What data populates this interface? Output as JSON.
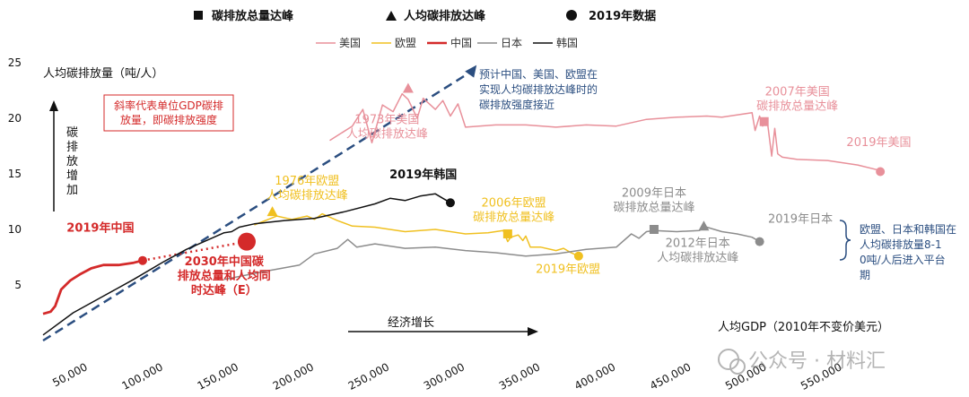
{
  "chart_data": {
    "type": "line",
    "ylabel": "人均碳排放量（吨/人）",
    "xlabel": "人均GDP（2010年不变价美元）",
    "ylim": [
      0,
      25
    ],
    "xlim": [
      20000,
      610000
    ],
    "yticks": [
      5,
      10,
      15,
      20,
      25
    ],
    "xticks": [
      50000,
      100000,
      150000,
      200000,
      250000,
      300000,
      350000,
      400000,
      450000,
      500000,
      550000
    ],
    "xtick_labels": [
      "50,000",
      "100,000",
      "150,000",
      "200,000",
      "250,000",
      "300,000",
      "350,000",
      "400,000",
      "450,000",
      "500,000",
      "550,000"
    ],
    "marker_legend": [
      {
        "symbol": "square",
        "label": "碳排放总量达峰"
      },
      {
        "symbol": "triangle",
        "label": "人均碳排放达峰"
      },
      {
        "symbol": "circle",
        "label": "2019年数据"
      }
    ],
    "series": [
      {
        "name": "美国",
        "color": "#e8909a",
        "x": [
          210000,
          225000,
          232000,
          238000,
          245000,
          252000,
          258000,
          262000,
          268000,
          272000,
          280000,
          285000,
          290000,
          295000,
          300000,
          320000,
          340000,
          360000,
          380000,
          400000,
          420000,
          440000,
          460000,
          470000,
          480000,
          490000,
          492000,
          495000,
          497000,
          500000,
          503000,
          505000,
          507000,
          510000,
          520000,
          540000,
          560000,
          575000
        ],
        "y": [
          18,
          19.3,
          20.8,
          17.8,
          21.2,
          20.6,
          22.2,
          21.7,
          20,
          21.8,
          20.8,
          21.6,
          20.2,
          21.3,
          19.2,
          19.4,
          19.4,
          19.2,
          19.4,
          19.3,
          19.9,
          20.1,
          20.2,
          20.1,
          20.3,
          20.5,
          18.9,
          20.2,
          19.3,
          19.8,
          16.6,
          19.1,
          16.8,
          16.5,
          16.3,
          16.2,
          15.8,
          15.3
        ]
      },
      {
        "name": "欧盟",
        "color": "#f0c020",
        "x": [
          160000,
          175000,
          185000,
          195000,
          200000,
          205000,
          215000,
          225000,
          240000,
          260000,
          280000,
          300000,
          315000,
          325000,
          328000,
          330000,
          335000,
          338000,
          340000,
          343000,
          350000,
          360000,
          365000,
          370000,
          375000
        ],
        "y": [
          10.4,
          11.2,
          10.9,
          11.2,
          10.9,
          11.4,
          10.8,
          10.3,
          10.2,
          9.8,
          10,
          9.6,
          9.7,
          9.9,
          8.9,
          9.3,
          9.5,
          9,
          9.4,
          8.4,
          8.4,
          8.1,
          8.3,
          7.9,
          7.6
        ]
      },
      {
        "name": "中国",
        "color": "#d42a2a",
        "x": [
          20000,
          25000,
          28000,
          32000,
          38000,
          45000,
          52000,
          60000,
          70000,
          80000,
          86000
        ],
        "y": [
          2.4,
          2.6,
          3.1,
          4.6,
          5.4,
          6,
          6.5,
          6.8,
          6.8,
          7,
          7.2
        ]
      },
      {
        "name": "日本",
        "color": "#8c8c8c",
        "x": [
          140000,
          170000,
          190000,
          200000,
          215000,
          222000,
          228000,
          240000,
          260000,
          280000,
          300000,
          320000,
          340000,
          360000,
          380000,
          400000,
          410000,
          415000,
          420000,
          425000,
          440000,
          455000,
          460000,
          470000,
          480000,
          490000,
          495000
        ],
        "y": [
          5.5,
          6.3,
          6.8,
          7.8,
          8.3,
          9.1,
          8.4,
          8.7,
          8.3,
          8.4,
          8.1,
          7.9,
          7.6,
          7.8,
          8.2,
          8.4,
          9.6,
          9.2,
          9.8,
          9.9,
          9.8,
          9.9,
          10.2,
          9.8,
          9.6,
          9.3,
          8.9
        ]
      },
      {
        "name": "韩国",
        "color": "#111111",
        "x": [
          20000,
          40000,
          60000,
          80000,
          100000,
          115000,
          130000,
          140000,
          145000,
          150000,
          160000,
          180000,
          200000,
          220000,
          240000,
          250000,
          260000,
          270000,
          280000,
          285000,
          290000
        ],
        "y": [
          0.5,
          2.5,
          4,
          5.5,
          7.1,
          8.2,
          9.1,
          9.7,
          9.8,
          10.2,
          10.5,
          10.8,
          11,
          11.6,
          12.3,
          12.8,
          12.6,
          13,
          13.2,
          12.8,
          12.4
        ]
      }
    ],
    "projection": {
      "x": [
        20000,
        305000
      ],
      "y": [
        0,
        24.3
      ],
      "label": "预计中国、美国、欧盟在实现人均碳排放达峰时的碳排放强度接近"
    },
    "china_projection": {
      "x": [
        86000,
        155000
      ],
      "y": [
        7.2,
        8.9
      ]
    },
    "markers": [
      {
        "symbol": "triangle",
        "x": 262000,
        "y": 22.7,
        "color": "#e8909a",
        "label": "1973年美国人均碳排放达峰",
        "lx": 248000,
        "ly": 18.9
      },
      {
        "symbol": "square",
        "x": 498000,
        "y": 19.7,
        "color": "#e8909a",
        "label": "2007年美国碳排放总量达峰",
        "lx": 520000,
        "ly": 21.4
      },
      {
        "symbol": "circle",
        "x": 575000,
        "y": 15.2,
        "color": "#e8909a",
        "label": "2019年美国",
        "lx": 574000,
        "ly": 17.5
      },
      {
        "symbol": "triangle",
        "x": 172000,
        "y": 11.6,
        "color": "#f0c020",
        "label": "1976年欧盟人均碳排放达峰",
        "lx": 195000,
        "ly": 13.4
      },
      {
        "symbol": "square",
        "x": 328000,
        "y": 9.6,
        "color": "#f0c020",
        "label": "2006年欧盟碳排放总量达峰",
        "lx": 332000,
        "ly": 11.4
      },
      {
        "symbol": "circle",
        "x": 375000,
        "y": 7.6,
        "color": "#f0c020",
        "label": "2019年欧盟",
        "lx": 368000,
        "ly": 6.1
      },
      {
        "symbol": "square",
        "x": 425000,
        "y": 10,
        "color": "#8c8c8c",
        "label": "2009年日本碳排放总量达峰",
        "lx": 425000,
        "ly": 12.3
      },
      {
        "symbol": "triangle",
        "x": 458000,
        "y": 10.3,
        "color": "#8c8c8c",
        "label": "2012年日本人均碳排放达峰",
        "lx": 454000,
        "ly": 7.8
      },
      {
        "symbol": "circle",
        "x": 495000,
        "y": 8.9,
        "color": "#8c8c8c",
        "label": "2019年日本",
        "lx": 522000,
        "ly": 10.6
      },
      {
        "symbol": "circle",
        "x": 290000,
        "y": 12.4,
        "color": "#111111",
        "label": "2019年韩国",
        "lx": 272000,
        "ly": 14.6
      },
      {
        "symbol": "circle",
        "x": 86000,
        "y": 7.2,
        "color": "#d42a2a",
        "label": "2019年中国",
        "lx": 58000,
        "ly": 9.8
      },
      {
        "symbol": "circle-large",
        "x": 155000,
        "y": 8.9,
        "color": "#d42a2a",
        "label": "2030年中国碳排放总量和人均同时达峰（E）",
        "lx": 140000,
        "ly": 5.5
      }
    ],
    "annotations": {
      "slope_note": "斜率代表单位GDP碳排放量，即碳排放强度",
      "carbon_up": "碳排放增加",
      "econ_growth": "经济增长",
      "plateau_note": "欧盟、日本和韩国在人均碳排放量8-10吨/人后进入平台期"
    }
  },
  "watermark": "公众号 · 材料汇"
}
